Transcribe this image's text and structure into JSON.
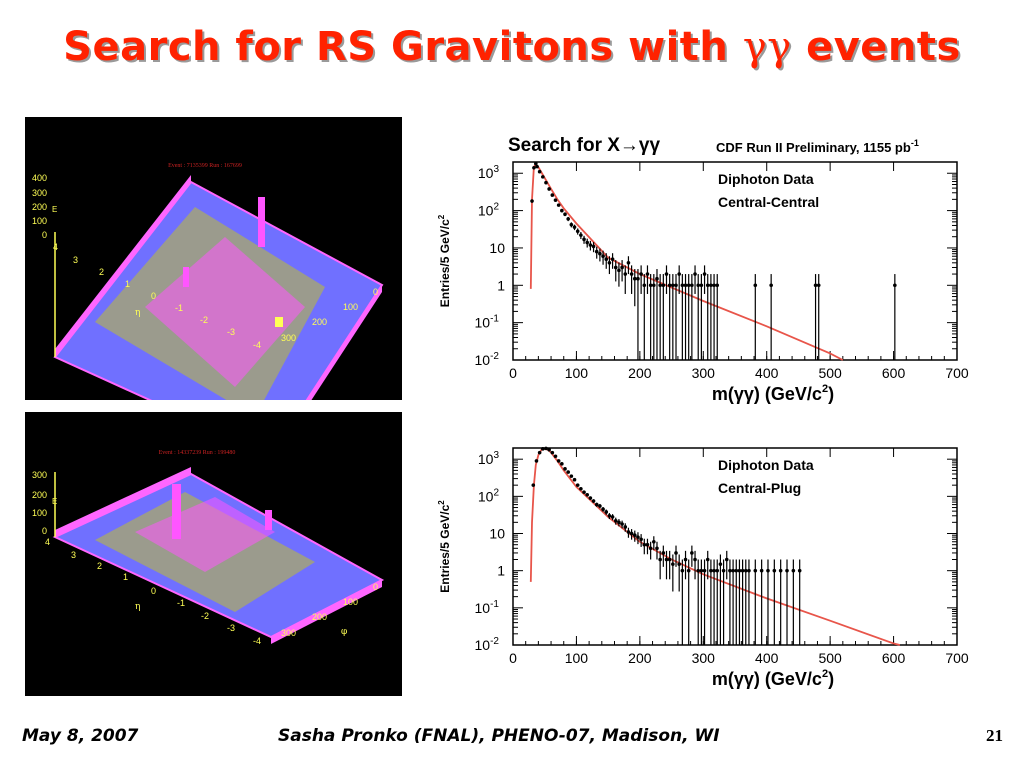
{
  "slide": {
    "title_main": "Search for RS Gravitons with ",
    "title_greek": "γγ",
    "title_tail": " events"
  },
  "footer": {
    "date": "May 8, 2007",
    "author": "Sasha Pronko (FNAL), PHENO-07, Madison, WI",
    "page": "21"
  },
  "event_displays": [
    {
      "header": "Event : 7135399  Run : 167699",
      "z_ticks": [
        "0",
        "100",
        "200",
        "300",
        "400"
      ],
      "z_label": "E",
      "eta_ticks": [
        "4",
        "3",
        "2",
        "1",
        "0",
        "-1",
        "-2",
        "-3",
        "-4"
      ],
      "eta_label": "η",
      "phi_ticks": [
        "0",
        "100",
        "200",
        "300"
      ]
    },
    {
      "header": "Event : 14337239  Run : 199480",
      "z_ticks": [
        "0",
        "100",
        "200",
        "300"
      ],
      "z_label": "E",
      "eta_ticks": [
        "4",
        "3",
        "2",
        "1",
        "0",
        "-1",
        "-2",
        "-3",
        "-4"
      ],
      "eta_label": "η",
      "phi_ticks": [
        "0",
        "100",
        "200",
        "300"
      ],
      "phi_label": "φ"
    }
  ],
  "chart_data": [
    {
      "type": "scatter",
      "title": "Search for X→γγ",
      "subtitle": "CDF Run II Preliminary, 1155 pb",
      "subtitle_sup": "-1",
      "legend": [
        "Diphoton Data",
        "Central-Central"
      ],
      "xlabel": "m(γγ) (GeV/c",
      "xlabel_sup": "2",
      "xlabel_tail": ")",
      "ylabel": "Entries/5 GeV/c",
      "ylabel_sup": "2",
      "xlim": [
        0,
        700
      ],
      "ylim": [
        0.01,
        2000
      ],
      "yscale": "log",
      "x_ticks": [
        0,
        100,
        200,
        300,
        400,
        500,
        600,
        700
      ],
      "y_ticks": [
        {
          "base": "10",
          "exp": "-2"
        },
        {
          "base": "10",
          "exp": "-1"
        },
        {
          "base": "1",
          "exp": ""
        },
        {
          "base": "10",
          "exp": ""
        },
        {
          "base": "10",
          "exp": "2"
        },
        {
          "base": "10",
          "exp": "3"
        }
      ],
      "fit_line": {
        "color": "#e8554a",
        "x": [
          28,
          30,
          33,
          36,
          40,
          45,
          50,
          60,
          70,
          80,
          100,
          150,
          200,
          300,
          400,
          500,
          520
        ],
        "y": [
          0.8,
          200,
          1500,
          1700,
          1450,
          1050,
          750,
          380,
          200,
          115,
          45,
          5.5,
          2.0,
          0.38,
          0.08,
          0.015,
          0.01
        ]
      },
      "points": {
        "x": [
          30,
          33,
          36,
          38,
          42,
          47,
          52,
          57,
          62,
          67,
          72,
          77,
          82,
          87,
          92,
          97,
          102,
          107,
          112,
          117,
          122,
          127,
          132,
          137,
          142,
          147,
          152,
          157,
          162,
          167,
          172,
          177,
          182,
          187,
          192,
          197,
          202,
          207,
          212,
          217,
          222,
          227,
          232,
          237,
          242,
          247,
          252,
          257,
          262,
          267,
          272,
          277,
          282,
          287,
          292,
          297,
          302,
          307,
          312,
          317,
          322,
          382,
          407,
          477,
          482,
          602
        ],
        "y": [
          180,
          1400,
          1800,
          1500,
          1100,
          800,
          560,
          380,
          260,
          190,
          140,
          100,
          80,
          60,
          42,
          36,
          28,
          22,
          17,
          14,
          12,
          11,
          8,
          7,
          6,
          5,
          4,
          5,
          3,
          2.5,
          3,
          2,
          4,
          2,
          1.5,
          1.5,
          2,
          1,
          2,
          1,
          1,
          1.5,
          1,
          1,
          2,
          1,
          1,
          1,
          2,
          1,
          1,
          1,
          1,
          2,
          1,
          1,
          2,
          1,
          1,
          1,
          1,
          1,
          1,
          1,
          1,
          1
        ],
        "error_to_floor_from_x": 195
      }
    },
    {
      "type": "scatter",
      "legend": [
        "Diphoton Data",
        "Central-Plug"
      ],
      "xlabel": "m(γγ) (GeV/c",
      "xlabel_sup": "2",
      "xlabel_tail": ")",
      "ylabel": "Entries/5 GeV/c",
      "ylabel_sup": "2",
      "xlim": [
        0,
        700
      ],
      "ylim": [
        0.01,
        2000
      ],
      "yscale": "log",
      "x_ticks": [
        0,
        100,
        200,
        300,
        400,
        500,
        600,
        700
      ],
      "y_ticks": [
        {
          "base": "10",
          "exp": "-2"
        },
        {
          "base": "10",
          "exp": "-1"
        },
        {
          "base": "1",
          "exp": ""
        },
        {
          "base": "10",
          "exp": ""
        },
        {
          "base": "10",
          "exp": "2"
        },
        {
          "base": "10",
          "exp": "3"
        }
      ],
      "fit_line": {
        "color": "#e8554a",
        "x": [
          28,
          30,
          33,
          36,
          40,
          45,
          50,
          55,
          60,
          70,
          80,
          100,
          150,
          200,
          250,
          300,
          400,
          500,
          600,
          610
        ],
        "y": [
          0.5,
          20,
          200,
          700,
          1300,
          1800,
          1900,
          1800,
          1500,
          900,
          500,
          180,
          28,
          6,
          2.0,
          0.8,
          0.18,
          0.045,
          0.011,
          0.01
        ]
      },
      "points": {
        "x": [
          32,
          37,
          42,
          47,
          52,
          57,
          62,
          67,
          72,
          77,
          82,
          87,
          92,
          97,
          102,
          107,
          112,
          117,
          122,
          127,
          132,
          137,
          142,
          147,
          152,
          157,
          162,
          167,
          172,
          177,
          182,
          187,
          192,
          197,
          202,
          207,
          212,
          217,
          222,
          227,
          232,
          237,
          242,
          247,
          252,
          257,
          262,
          267,
          272,
          277,
          282,
          287,
          292,
          297,
          302,
          307,
          312,
          317,
          322,
          327,
          332,
          337,
          342,
          347,
          352,
          357,
          362,
          367,
          372,
          382,
          392,
          402,
          412,
          422,
          432,
          442,
          452
        ],
        "y": [
          200,
          900,
          1500,
          1900,
          1950,
          1800,
          1500,
          1200,
          900,
          750,
          550,
          450,
          350,
          280,
          200,
          160,
          130,
          110,
          90,
          75,
          60,
          55,
          45,
          38,
          30,
          28,
          22,
          20,
          18,
          15,
          11,
          10,
          9,
          8,
          7,
          5,
          5,
          4,
          6,
          4,
          2,
          3,
          2,
          2,
          1.5,
          3,
          1.5,
          1,
          2,
          1,
          3,
          2,
          1,
          1,
          1,
          2,
          1,
          1,
          1,
          1.5,
          1,
          2,
          1,
          1,
          1,
          1,
          1,
          1,
          1,
          1,
          1,
          1,
          1,
          1,
          1,
          1,
          1
        ],
        "error_to_floor_from_x": 290
      }
    }
  ]
}
